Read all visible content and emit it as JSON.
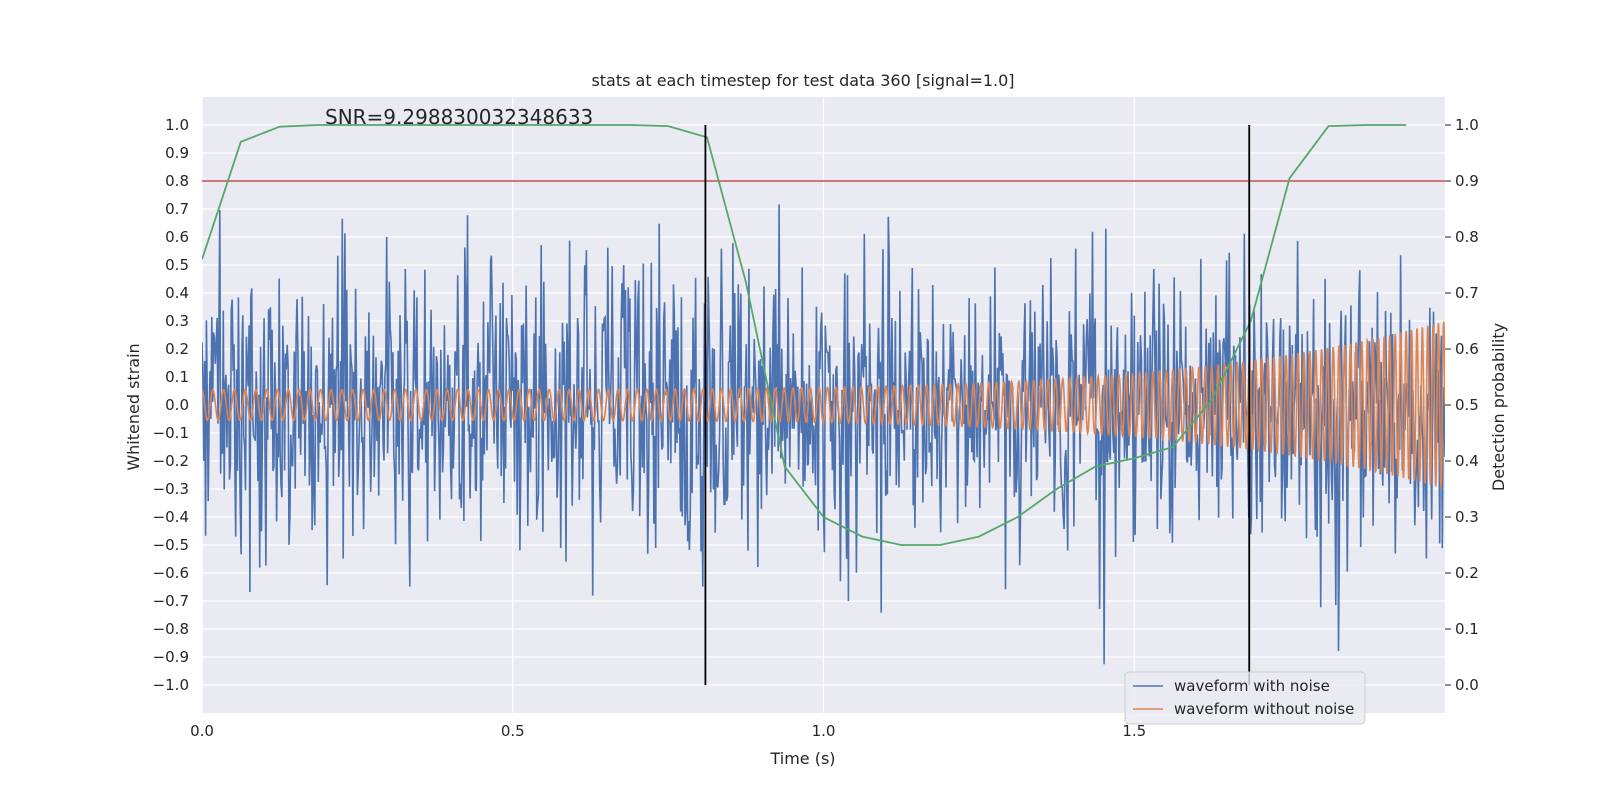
{
  "chart_data": {
    "type": "line",
    "title": "stats at each timestep for test data 360 [signal=1.0]",
    "xlabel": "Time (s)",
    "ylabel_left": "Whitened strain",
    "ylabel_right": "Detection probability",
    "xlim": [
      0.0,
      2.0
    ],
    "ylim_left": [
      -1.1,
      1.1
    ],
    "ylim_right": [
      -0.05,
      1.05
    ],
    "x_ticks": [
      "0.0",
      "0.5",
      "1.0",
      "1.5"
    ],
    "y_ticks_left": [
      "1.0",
      "0.9",
      "0.8",
      "0.7",
      "0.6",
      "0.5",
      "0.4",
      "0.3",
      "0.2",
      "0.1",
      "0.0",
      "−0.1",
      "−0.2",
      "−0.3",
      "−0.4",
      "−0.5",
      "−0.6",
      "−0.7",
      "−0.8",
      "−0.9",
      "−1.0"
    ],
    "y_ticks_right": [
      "1.0",
      "0.9",
      "0.8",
      "0.7",
      "0.6",
      "0.5",
      "0.4",
      "0.3",
      "0.2",
      "0.1",
      "0.0"
    ],
    "annotation": "SNR=9.298830032348633",
    "threshold": {
      "value": 0.9,
      "axis": "right",
      "color": "#c44e52"
    },
    "vertical_lines": [
      0.81,
      1.685
    ],
    "series": [
      {
        "name": "waveform with noise",
        "axis": "left",
        "color": "#4c72b0",
        "kind": "noise",
        "amplitude": 0.42,
        "peak": 1.0,
        "samples": 1400
      },
      {
        "name": "waveform without noise",
        "axis": "left",
        "color": "#dd8452",
        "kind": "chirp",
        "base_amplitude": 0.055,
        "end_amplitude": 0.3,
        "cycles": 115
      },
      {
        "name": "Detection probability",
        "axis": "right",
        "color": "#55a868",
        "kind": "probability",
        "x": [
          0.0,
          0.0625,
          0.125,
          0.1875,
          0.25,
          0.3125,
          0.375,
          0.4375,
          0.5,
          0.5625,
          0.625,
          0.6875,
          0.75,
          0.8125,
          0.875,
          0.9375,
          1.0,
          1.0625,
          1.125,
          1.1875,
          1.25,
          1.3125,
          1.375,
          1.4375,
          1.5,
          1.5625,
          1.625,
          1.6875,
          1.75,
          1.8125,
          1.875,
          1.9375
        ],
        "y": [
          0.76,
          0.97,
          0.997,
          1.0,
          1.0,
          1.0,
          1.0,
          1.0,
          1.0,
          1.0,
          1.0,
          1.0,
          0.998,
          0.978,
          0.72,
          0.39,
          0.3,
          0.265,
          0.25,
          0.25,
          0.265,
          0.3,
          0.35,
          0.39,
          0.405,
          0.425,
          0.51,
          0.65,
          0.905,
          0.998,
          1.0,
          1.0
        ]
      }
    ],
    "legend": {
      "location": "lower-right",
      "entries": [
        "waveform with noise",
        "waveform without noise"
      ]
    },
    "grid": true
  }
}
